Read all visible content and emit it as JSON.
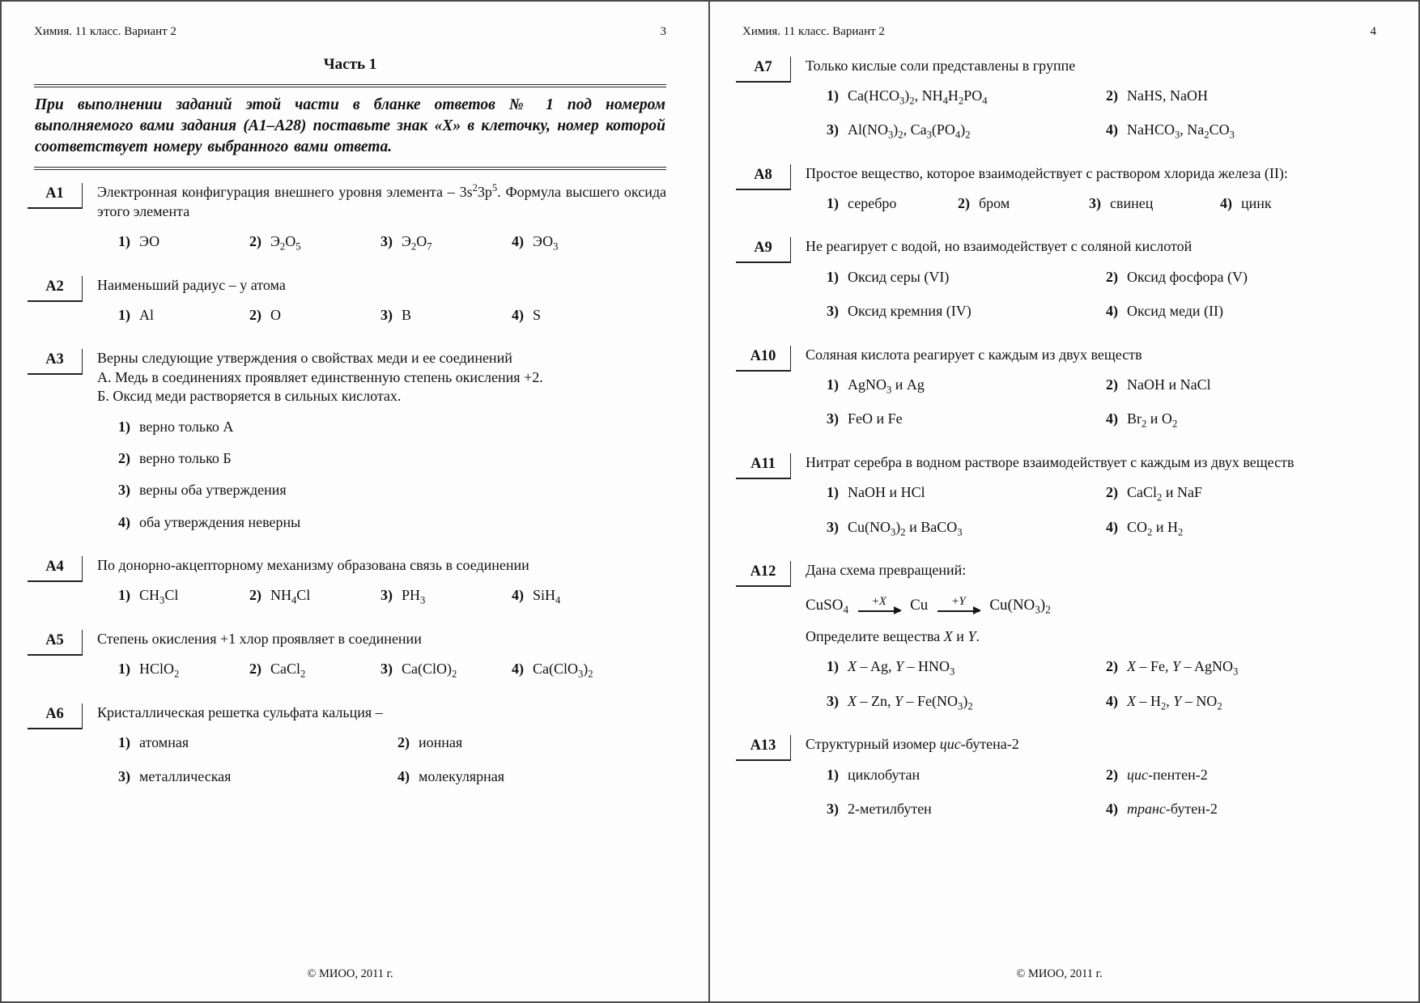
{
  "pages": [
    {
      "running_header": "Химия. 11 класс. Вариант 2",
      "page_number": "3",
      "part_title": "Часть 1",
      "instruction": "При выполнении заданий этой части в бланке ответов № 1 под номером выполняемого вами задания (А1–А28) поставьте знак «Х» в клеточку, номер которой соответствует номеру выбранного вами ответа.",
      "footer": "© МИОО, 2011 г.",
      "questions": [
        {
          "label": "А1",
          "layout": "row4",
          "lines": [
            "Электронная конфигурация внешнего уровня элемента – 3s^23p^5. Формула высшего оксида этого элемента"
          ],
          "options": [
            {
              "num": "1)",
              "text": "ЭО"
            },
            {
              "num": "2)",
              "text": "Э_2О_5"
            },
            {
              "num": "3)",
              "text": "Э_2О_7"
            },
            {
              "num": "4)",
              "text": "ЭО_3"
            }
          ]
        },
        {
          "label": "А2",
          "layout": "row4",
          "lines": [
            "Наименьший радиус – у атома"
          ],
          "options": [
            {
              "num": "1)",
              "text": "Al"
            },
            {
              "num": "2)",
              "text": "O"
            },
            {
              "num": "3)",
              "text": "B"
            },
            {
              "num": "4)",
              "text": "S"
            }
          ]
        },
        {
          "label": "А3",
          "layout": "stack",
          "lines": [
            "Верны следующие утверждения о свойствах меди и ее соединений",
            "А. Медь в соединениях проявляет единственную степень окисления +2.",
            "Б. Оксид меди растворяется в сильных кислотах."
          ],
          "options": [
            {
              "num": "1)",
              "text": "верно только А"
            },
            {
              "num": "2)",
              "text": "верно только Б"
            },
            {
              "num": "3)",
              "text": "верны оба утверждения"
            },
            {
              "num": "4)",
              "text": "оба утверждения неверны"
            }
          ]
        },
        {
          "label": "А4",
          "layout": "row4",
          "lines": [
            "По донорно-акцепторному механизму образована связь в соединении"
          ],
          "options": [
            {
              "num": "1)",
              "text": "CH_3Cl"
            },
            {
              "num": "2)",
              "text": "NH_4Cl"
            },
            {
              "num": "3)",
              "text": "PH_3"
            },
            {
              "num": "4)",
              "text": "SiH_4"
            }
          ]
        },
        {
          "label": "А5",
          "layout": "row4",
          "lines": [
            "Степень окисления +1 хлор проявляет в соединении"
          ],
          "options": [
            {
              "num": "1)",
              "text": "HClO_2"
            },
            {
              "num": "2)",
              "text": "CaCl_2"
            },
            {
              "num": "3)",
              "text": "Ca(ClO)_2"
            },
            {
              "num": "4)",
              "text": "Ca(ClO_3)_2"
            }
          ]
        },
        {
          "label": "А6",
          "layout": "grid2",
          "lines": [
            "Кристаллическая решетка сульфата кальция –"
          ],
          "options": [
            {
              "num": "1)",
              "text": "атомная"
            },
            {
              "num": "2)",
              "text": "ионная"
            },
            {
              "num": "3)",
              "text": "металлическая"
            },
            {
              "num": "4)",
              "text": "молекулярная"
            }
          ]
        }
      ]
    },
    {
      "running_header": "Химия. 11 класс. Вариант 2",
      "page_number": "4",
      "footer": "© МИОО, 2011 г.",
      "questions": [
        {
          "label": "А7",
          "layout": "grid2",
          "lines": [
            "Только кислые соли представлены в группе"
          ],
          "options": [
            {
              "num": "1)",
              "text": "Ca(HCO_3)_2, NH_4H_2PO_4"
            },
            {
              "num": "2)",
              "text": "NaHS, NaOH"
            },
            {
              "num": "3)",
              "text": "Al(NO_3)_2, Ca_3(PO_4)_2"
            },
            {
              "num": "4)",
              "text": "NaHCO_3, Na_2CO_3"
            }
          ]
        },
        {
          "label": "А8",
          "layout": "row4",
          "lines": [
            "Простое вещество, которое взаимодействует с раствором хлорида железа (II):"
          ],
          "options": [
            {
              "num": "1)",
              "text": "серебро"
            },
            {
              "num": "2)",
              "text": "бром"
            },
            {
              "num": "3)",
              "text": "свинец"
            },
            {
              "num": "4)",
              "text": "цинк"
            }
          ]
        },
        {
          "label": "А9",
          "layout": "grid2",
          "lines": [
            "Не реагирует с водой, но взаимодействует с соляной кислотой"
          ],
          "options": [
            {
              "num": "1)",
              "text": "Оксид серы (VI)"
            },
            {
              "num": "2)",
              "text": "Оксид фосфора (V)"
            },
            {
              "num": "3)",
              "text": "Оксид кремния (IV)"
            },
            {
              "num": "4)",
              "text": "Оксид меди (II)"
            }
          ]
        },
        {
          "label": "А10",
          "layout": "grid2",
          "lines": [
            "Соляная кислота реагирует с каждым из двух веществ"
          ],
          "options": [
            {
              "num": "1)",
              "text": "AgNO_3 и Ag"
            },
            {
              "num": "2)",
              "text": "NaOH и NaCl"
            },
            {
              "num": "3)",
              "text": "FeO и Fe"
            },
            {
              "num": "4)",
              "text": "Br_2 и O_2"
            }
          ]
        },
        {
          "label": "А11",
          "layout": "grid2",
          "lines": [
            "Нитрат серебра в водном растворе взаимодействует с каждым из двух веществ"
          ],
          "options": [
            {
              "num": "1)",
              "text": "NaOH и HCl"
            },
            {
              "num": "2)",
              "text": "CaCl_2 и NaF"
            },
            {
              "num": "3)",
              "text": "Cu(NO_3)_2 и BaCO_3"
            },
            {
              "num": "4)",
              "text": "CO_2 и H_2"
            }
          ]
        },
        {
          "label": "А12",
          "layout": "grid2",
          "lines": [
            "Дана схема превращений:"
          ],
          "scheme": {
            "left": "CuSO_4",
            "arrow1": "+*X*",
            "mid": "Cu",
            "arrow2": "+*Y*",
            "right": "Cu(NO_3)_2"
          },
          "post_lines": [
            "Определите вещества *X* и *Y*."
          ],
          "options": [
            {
              "num": "1)",
              "text": "*X* – Ag, *Y* – HNO_3"
            },
            {
              "num": "2)",
              "text": "*X* – Fe, *Y* – AgNO_3"
            },
            {
              "num": "3)",
              "text": "*X* – Zn, *Y* – Fe(NO_3)_2"
            },
            {
              "num": "4)",
              "text": "*X* – H_2, *Y* – NO_2"
            }
          ]
        },
        {
          "label": "А13",
          "layout": "grid2",
          "lines": [
            "Структурный изомер *цис*-бутена-2"
          ],
          "options": [
            {
              "num": "1)",
              "text": "циклобутан"
            },
            {
              "num": "2)",
              "text": "*цис*-пентен-2"
            },
            {
              "num": "3)",
              "text": "2-метилбутен"
            },
            {
              "num": "4)",
              "text": "*транс*-бутен-2"
            }
          ]
        }
      ]
    }
  ]
}
